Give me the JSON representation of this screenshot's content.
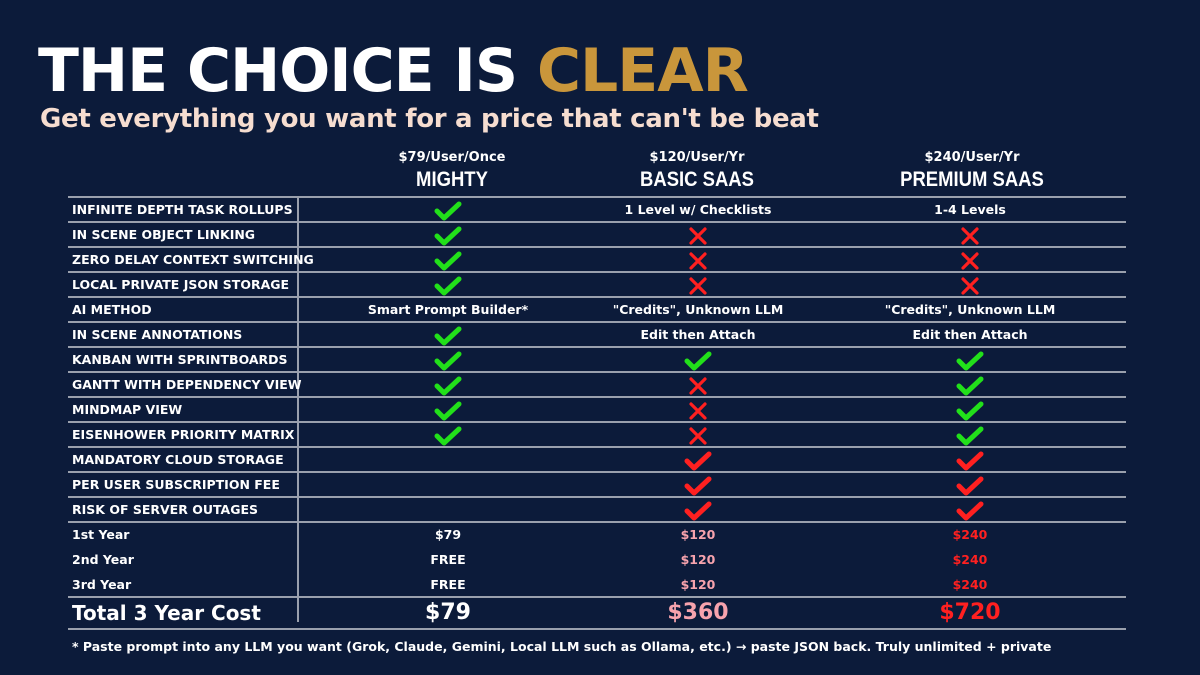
{
  "title": {
    "main": "THE CHOICE IS ",
    "accent": "CLEAR"
  },
  "subtitle": "Get everything you want for a price that can't be beat",
  "plans": [
    {
      "price": "$79/User/Once",
      "name": "MIGHTY"
    },
    {
      "price": "$120/User/Yr",
      "name": "BASIC SAAS"
    },
    {
      "price": "$240/User/Yr",
      "name": "PREMIUM SAAS"
    }
  ],
  "features": [
    {
      "label": "INFINITE DEPTH TASK ROLLUPS",
      "values": [
        "check-green-icon",
        "1 Level w/ Checklists",
        "1-4 Levels"
      ]
    },
    {
      "label": "IN SCENE OBJECT LINKING",
      "values": [
        "check-green-icon",
        "cross-red-icon",
        "cross-red-icon"
      ]
    },
    {
      "label": "ZERO DELAY CONTEXT SWITCHING",
      "values": [
        "check-green-icon",
        "cross-red-icon",
        "cross-red-icon"
      ]
    },
    {
      "label": "LOCAL  PRIVATE JSON STORAGE",
      "values": [
        "check-green-icon",
        "cross-red-icon",
        "cross-red-icon"
      ]
    },
    {
      "label": "AI METHOD",
      "values": [
        "Smart Prompt Builder*",
        "\"Credits\", Unknown LLM",
        "\"Credits\", Unknown LLM"
      ]
    },
    {
      "label": "IN SCENE ANNOTATIONS",
      "values": [
        "check-green-icon",
        "Edit then Attach",
        "Edit then Attach"
      ]
    },
    {
      "label": "KANBAN WITH SPRINTBOARDS",
      "values": [
        "check-green-icon",
        "check-green-icon",
        "check-green-icon"
      ]
    },
    {
      "label": "GANTT WITH DEPENDENCY VIEW",
      "values": [
        "check-green-icon",
        "cross-red-icon",
        "check-green-icon"
      ]
    },
    {
      "label": " MINDMAP VIEW",
      "values": [
        "check-green-icon",
        "cross-red-icon",
        "check-green-icon"
      ]
    },
    {
      "label": " EISENHOWER PRIORITY MATRIX",
      "values": [
        "check-green-icon",
        "cross-red-icon",
        "check-green-icon"
      ]
    },
    {
      "label": "MANDATORY CLOUD STORAGE",
      "values": [
        "",
        "check-red-icon",
        "check-red-icon"
      ]
    },
    {
      "label": "PER USER SUBSCRIPTION FEE",
      "values": [
        "",
        "check-red-icon",
        "check-red-icon"
      ]
    },
    {
      "label": "RISK OF SERVER OUTAGES",
      "values": [
        "",
        "check-red-icon",
        "check-red-icon"
      ]
    }
  ],
  "costs": [
    {
      "label": "1st Year",
      "values": [
        "$79",
        "$120",
        "$240"
      ]
    },
    {
      "label": "2nd Year",
      "values": [
        "FREE",
        "$120",
        "$240"
      ]
    },
    {
      "label": "3rd Year",
      "values": [
        "FREE",
        "$120",
        "$240"
      ]
    }
  ],
  "total": {
    "label": "Total 3 Year Cost",
    "values": [
      "$79",
      "$360",
      "$720"
    ]
  },
  "colors": {
    "background": "#0c1b3a",
    "accent": "#c9963b",
    "green": "#22e01a",
    "red": "#ff2020",
    "pink": "#f7a3ad",
    "divider": "#9aa0ad"
  },
  "footnote": "* Paste prompt into any LLM you want (Grok, Claude, Gemini, Local LLM such as Ollama, etc.) → paste JSON back. Truly unlimited + private"
}
